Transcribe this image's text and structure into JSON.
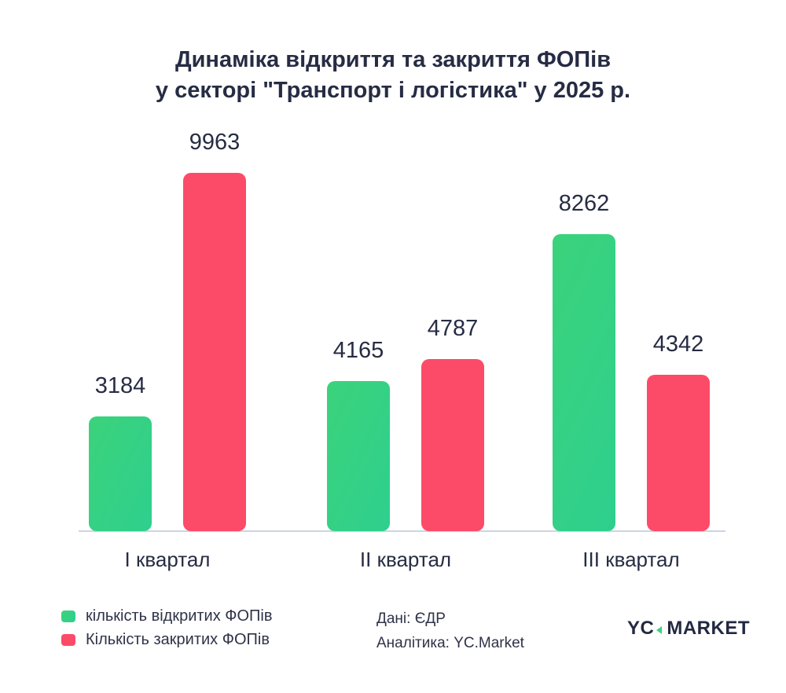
{
  "title": {
    "line1": "Динаміка відкриття та закриття ФОПів",
    "line2": "у секторі \"Транспорт і логістика\" у 2025 р."
  },
  "chart_data": {
    "type": "bar",
    "title": "Динаміка відкриття та закриття ФОПів у секторі \"Транспорт і логістика\" у 2025 р.",
    "categories": [
      "І квартал",
      "ІІ квартал",
      "ІІІ квартал"
    ],
    "series": [
      {
        "name": "кількість відкритих ФОПів",
        "color": "#3bd37b",
        "color2": "#2ecf8e",
        "values": [
          3184,
          4165,
          8262
        ]
      },
      {
        "name": "Кількість закритих ФОПів",
        "color": "#fc4b68",
        "values": [
          9963,
          4787,
          4342
        ]
      }
    ],
    "value_labels": true,
    "xlabel": "",
    "ylabel": "",
    "ylim": [
      0,
      9963
    ],
    "grid": false,
    "legend_position": "bottom-left",
    "axis_line_color": "#ccd4e3"
  },
  "source": {
    "line1": "Дані: ЄДР",
    "line2": "Аналітика: YC.Market"
  },
  "logo": {
    "yc": "YC",
    "market": "MARKET",
    "triangle_color": "#3dd27e"
  }
}
